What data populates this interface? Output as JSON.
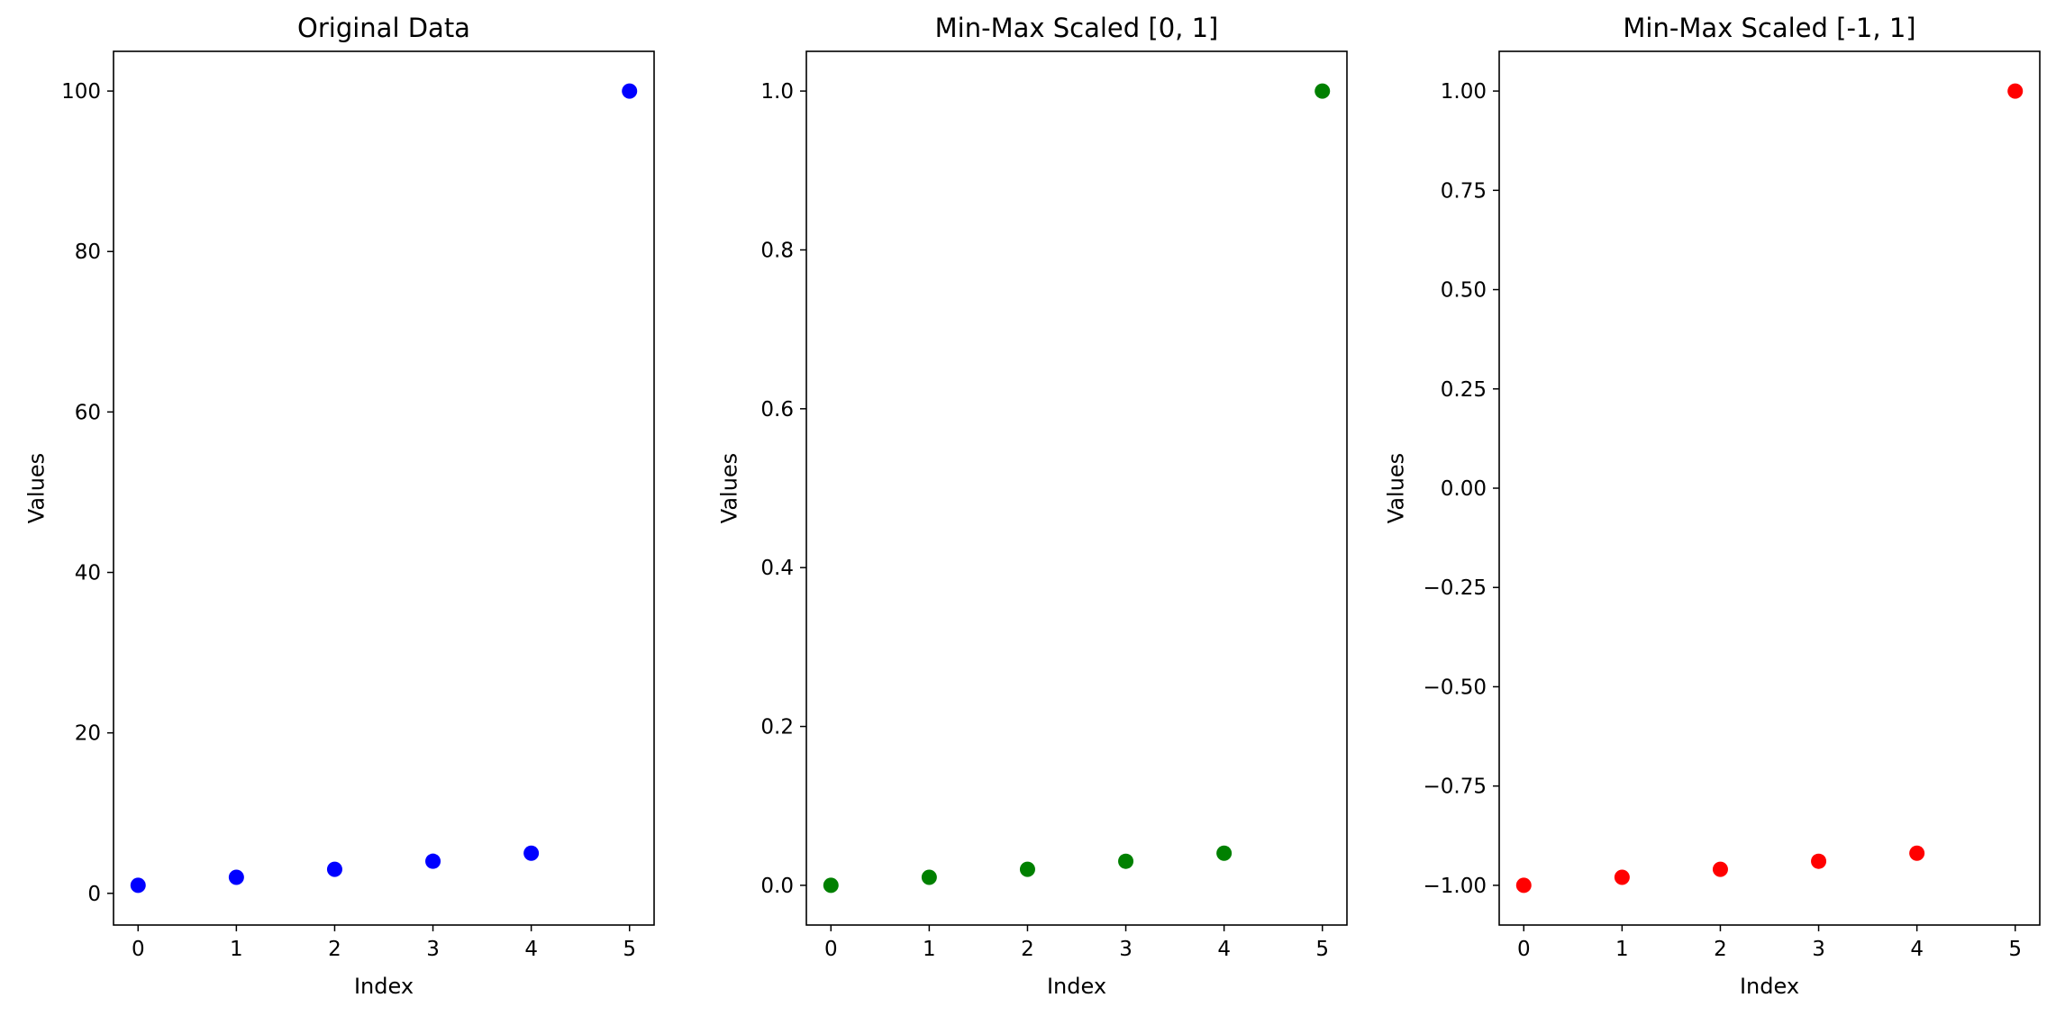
{
  "chart_data": [
    {
      "type": "scatter",
      "title": "Original Data",
      "xlabel": "Index",
      "ylabel": "Values",
      "color": "#0000ff",
      "x": [
        0,
        1,
        2,
        3,
        4,
        5
      ],
      "y": [
        1,
        2,
        3,
        4,
        5,
        100
      ],
      "xlim": [
        -0.25,
        5.25
      ],
      "ylim": [
        -3.95,
        104.95
      ],
      "xticks": [
        0,
        1,
        2,
        3,
        4,
        5
      ],
      "xtick_labels": [
        "0",
        "1",
        "2",
        "3",
        "4",
        "5"
      ],
      "yticks": [
        0,
        20,
        40,
        60,
        80,
        100
      ],
      "ytick_labels": [
        "0",
        "20",
        "40",
        "60",
        "80",
        "100"
      ],
      "grid": false
    },
    {
      "type": "scatter",
      "title": "Min-Max Scaled [0, 1]",
      "xlabel": "Index",
      "ylabel": "Values",
      "color": "#008000",
      "x": [
        0,
        1,
        2,
        3,
        4,
        5
      ],
      "y": [
        0.0,
        0.0101,
        0.0202,
        0.0303,
        0.0404,
        1.0
      ],
      "xlim": [
        -0.25,
        5.25
      ],
      "ylim": [
        -0.05,
        1.05
      ],
      "xticks": [
        0,
        1,
        2,
        3,
        4,
        5
      ],
      "xtick_labels": [
        "0",
        "1",
        "2",
        "3",
        "4",
        "5"
      ],
      "yticks": [
        0.0,
        0.2,
        0.4,
        0.6,
        0.8,
        1.0
      ],
      "ytick_labels": [
        "0.0",
        "0.2",
        "0.4",
        "0.6",
        "0.8",
        "1.0"
      ],
      "grid": false
    },
    {
      "type": "scatter",
      "title": "Min-Max Scaled [-1, 1]",
      "xlabel": "Index",
      "ylabel": "Values",
      "color": "#ff0000",
      "x": [
        0,
        1,
        2,
        3,
        4,
        5
      ],
      "y": [
        -1.0,
        -0.9798,
        -0.9596,
        -0.9394,
        -0.9192,
        1.0
      ],
      "xlim": [
        -0.25,
        5.25
      ],
      "ylim": [
        -1.1,
        1.1
      ],
      "xticks": [
        0,
        1,
        2,
        3,
        4,
        5
      ],
      "xtick_labels": [
        "0",
        "1",
        "2",
        "3",
        "4",
        "5"
      ],
      "yticks": [
        -1.0,
        -0.75,
        -0.5,
        -0.25,
        0.0,
        0.25,
        0.5,
        0.75,
        1.0
      ],
      "ytick_labels": [
        "−1.00",
        "−0.75",
        "−0.50",
        "−0.25",
        "0.00",
        "0.25",
        "0.50",
        "0.75",
        "1.00"
      ],
      "grid": false
    }
  ]
}
